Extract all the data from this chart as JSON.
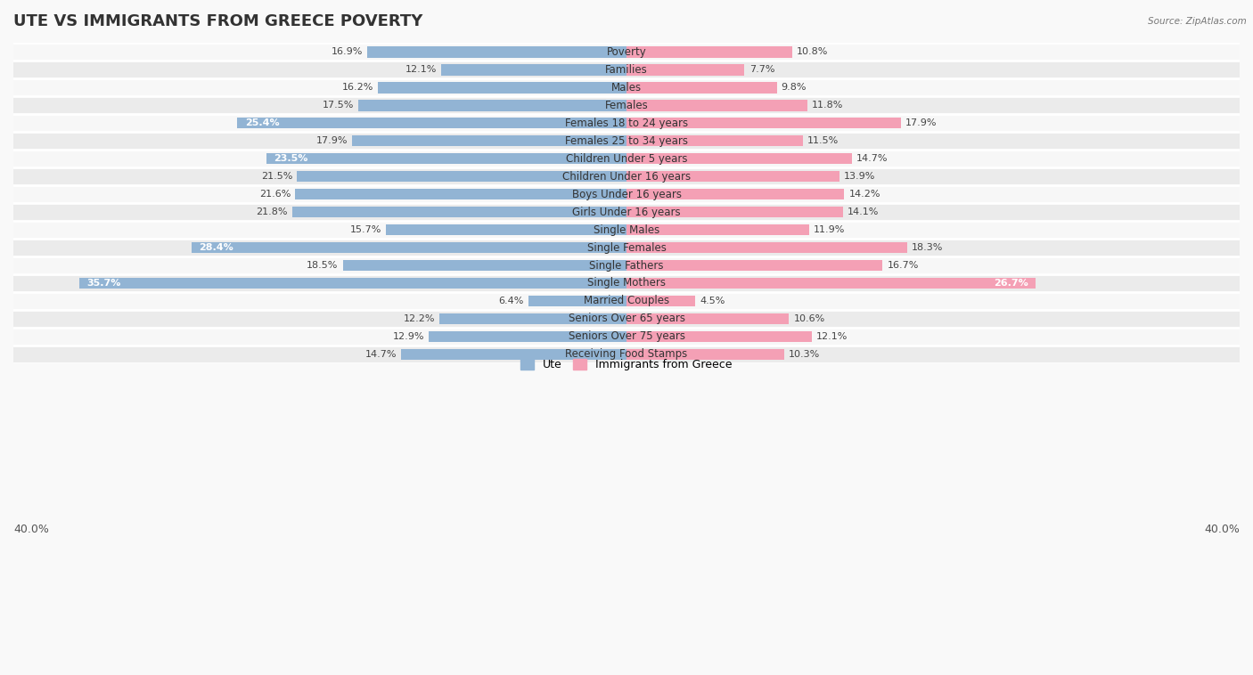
{
  "title": "UTE VS IMMIGRANTS FROM GREECE POVERTY",
  "source": "Source: ZipAtlas.com",
  "categories": [
    "Poverty",
    "Families",
    "Males",
    "Females",
    "Females 18 to 24 years",
    "Females 25 to 34 years",
    "Children Under 5 years",
    "Children Under 16 years",
    "Boys Under 16 years",
    "Girls Under 16 years",
    "Single Males",
    "Single Females",
    "Single Fathers",
    "Single Mothers",
    "Married Couples",
    "Seniors Over 65 years",
    "Seniors Over 75 years",
    "Receiving Food Stamps"
  ],
  "ute_values": [
    16.9,
    12.1,
    16.2,
    17.5,
    25.4,
    17.9,
    23.5,
    21.5,
    21.6,
    21.8,
    15.7,
    28.4,
    18.5,
    35.7,
    6.4,
    12.2,
    12.9,
    14.7
  ],
  "greece_values": [
    10.8,
    7.7,
    9.8,
    11.8,
    17.9,
    11.5,
    14.7,
    13.9,
    14.2,
    14.1,
    11.9,
    18.3,
    16.7,
    26.7,
    4.5,
    10.6,
    12.1,
    10.3
  ],
  "ute_color": "#92b4d4",
  "greece_color": "#f4a0b5",
  "bar_height": 0.62,
  "xlim": 40.0,
  "row_bg_light": "#f7f7f7",
  "row_bg_dark": "#ebebeb",
  "legend_label_ute": "Ute",
  "legend_label_greece": "Immigrants from Greece",
  "title_fontsize": 13,
  "cat_fontsize": 8.5,
  "value_fontsize": 8.0,
  "axis_fontsize": 9,
  "white_threshold": 22.0
}
